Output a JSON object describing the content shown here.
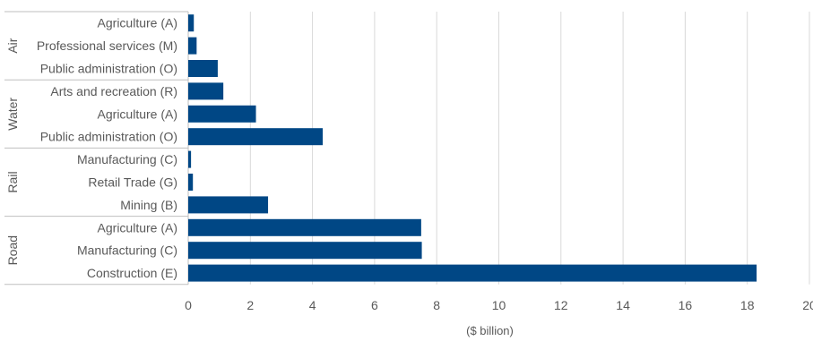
{
  "chart_data": {
    "type": "bar",
    "orientation": "horizontal",
    "xlabel": "($ billion)",
    "xlim": [
      0,
      20
    ],
    "xticks": [
      0,
      2,
      4,
      6,
      8,
      10,
      12,
      14,
      16,
      18,
      20
    ],
    "grid": true,
    "bar_color": "#004785",
    "groups": [
      {
        "name": "Air",
        "categories": [
          "Agriculture (A)",
          "Professional services (M)",
          "Public administration (O)"
        ],
        "values": [
          0.18,
          0.27,
          0.95
        ]
      },
      {
        "name": "Water",
        "categories": [
          "Arts and recreation (R)",
          "Agriculture (A)",
          "Public administration (O)"
        ],
        "values": [
          1.13,
          2.18,
          4.33
        ]
      },
      {
        "name": "Rail",
        "categories": [
          "Manufacturing (C)",
          "Retail Trade (G)",
          "Mining (B)"
        ],
        "values": [
          0.09,
          0.15,
          2.57
        ]
      },
      {
        "name": "Road",
        "categories": [
          "Agriculture (A)",
          "Manufacturing (C)",
          "Construction (E)"
        ],
        "values": [
          7.5,
          7.52,
          18.3
        ]
      }
    ]
  }
}
